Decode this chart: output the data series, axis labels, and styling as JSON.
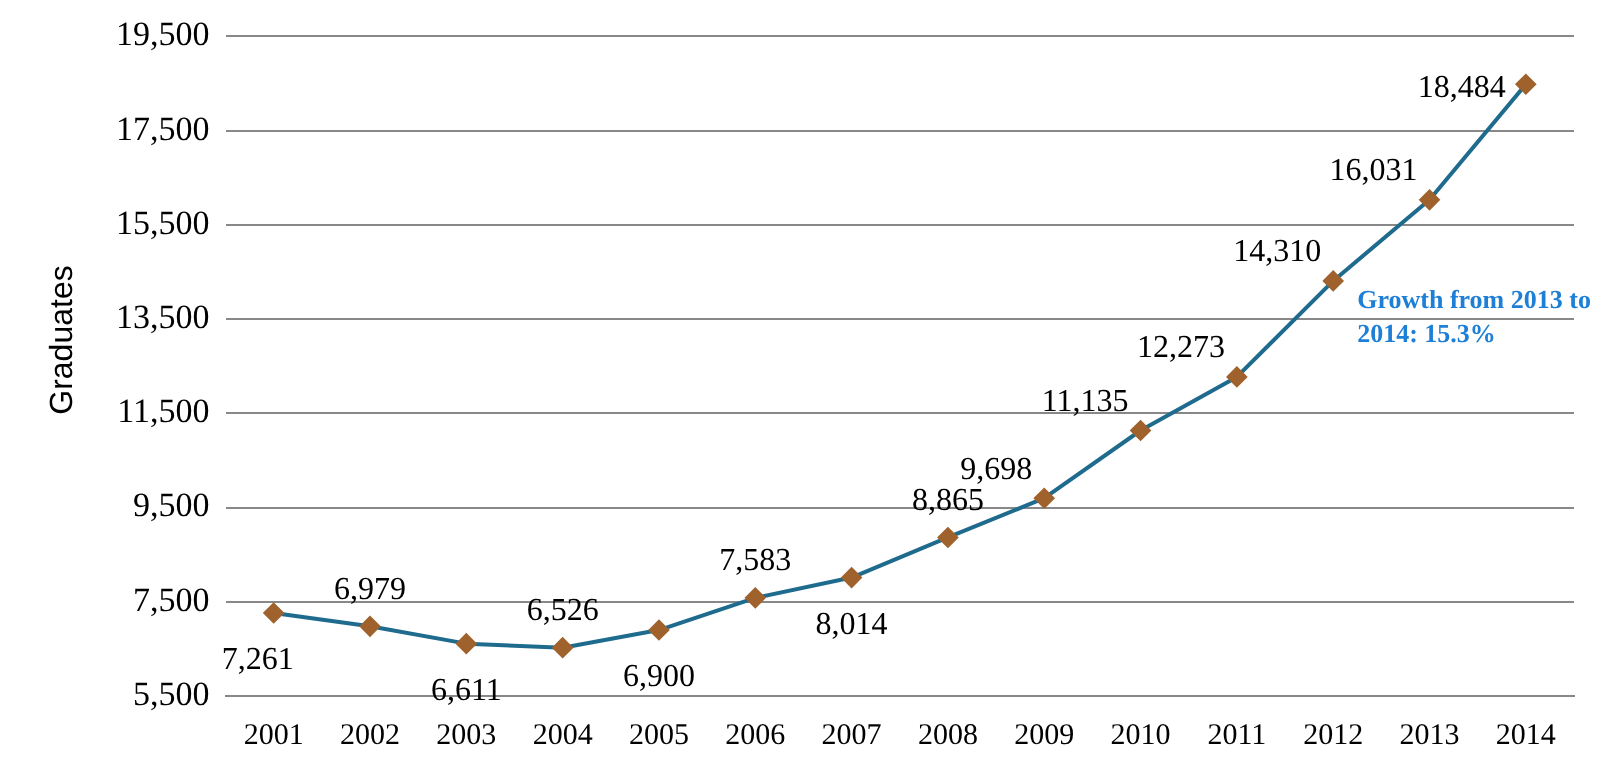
{
  "chart_data": {
    "type": "line",
    "ylabel": "Graduates",
    "categories": [
      "2001",
      "2002",
      "2003",
      "2004",
      "2005",
      "2006",
      "2007",
      "2008",
      "2009",
      "2010",
      "2011",
      "2012",
      "2013",
      "2014"
    ],
    "series": [
      {
        "color": "#1f6b8e",
        "values": [
          7261,
          6979,
          6611,
          6526,
          6900,
          7583,
          8014,
          8865,
          9698,
          11135,
          12273,
          14310,
          16031,
          18484
        ],
        "value_labels": [
          "7,261",
          "6,979",
          "6,611",
          "6,526",
          "6,900",
          "7,583",
          "8,014",
          "8,865",
          "9,698",
          "11,135",
          "12,273",
          "14,310",
          "16,031",
          "18,484"
        ]
      }
    ],
    "ylim": [
      5500,
      19500
    ],
    "yticks": [
      {
        "value": 5500,
        "label": "5,500"
      },
      {
        "value": 7500,
        "label": "7,500"
      },
      {
        "value": 9500,
        "label": "9,500"
      },
      {
        "value": 11500,
        "label": "11,500"
      },
      {
        "value": 13500,
        "label": "13,500"
      },
      {
        "value": 15500,
        "label": "15,500"
      },
      {
        "value": 17500,
        "label": "17,500"
      },
      {
        "value": 19500,
        "label": "19,500"
      }
    ],
    "grid": "y",
    "legend": false,
    "marker": "diamond",
    "line_style": "solid",
    "annotations": [
      "Growth from 2013 to 2014: 15.3%"
    ]
  }
}
